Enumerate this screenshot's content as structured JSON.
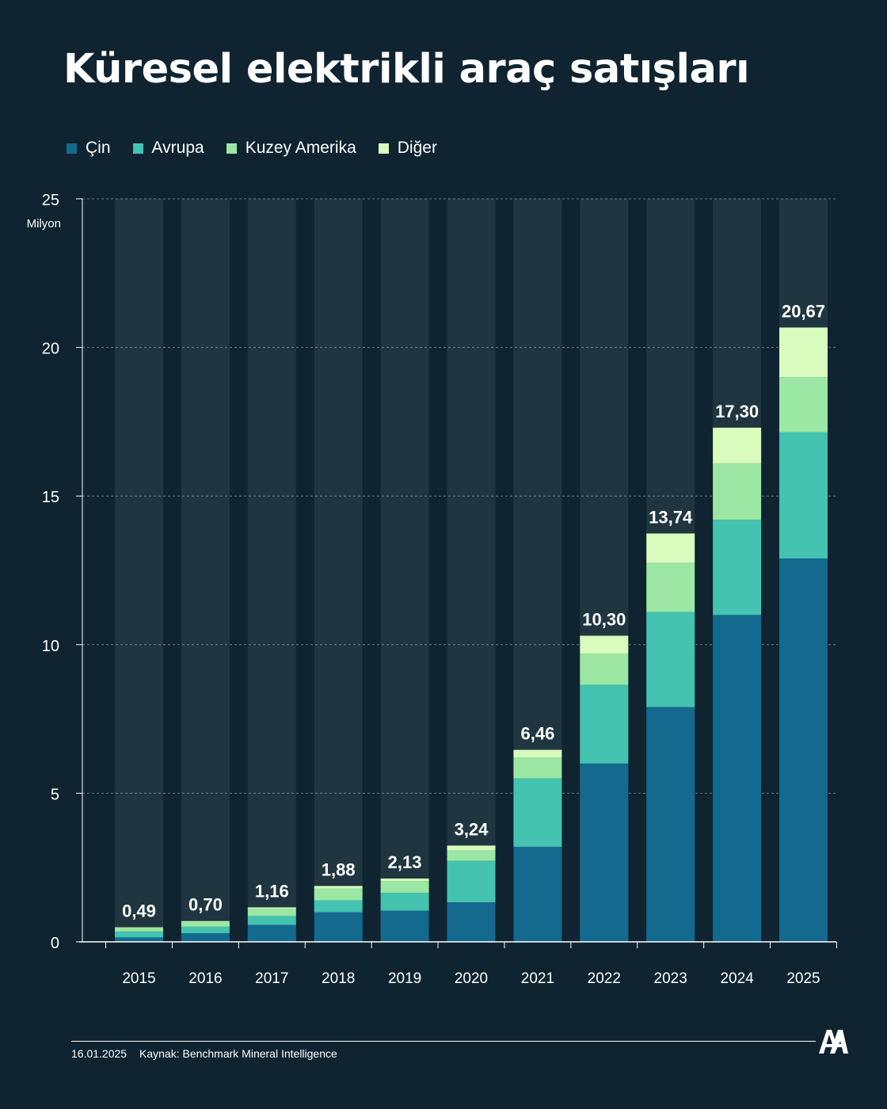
{
  "chart_data": {
    "type": "bar",
    "stacked": true,
    "title": "Küresel elektrikli araç satışları",
    "ylabel": "Milyon",
    "ylim": [
      0,
      25
    ],
    "yticks": [
      "0",
      "5",
      "10",
      "15",
      "20",
      "25"
    ],
    "categories": [
      "2015",
      "2016",
      "2017",
      "2018",
      "2019",
      "2020",
      "2021",
      "2022",
      "2023",
      "2024",
      "2025"
    ],
    "totals": [
      "0,49",
      "0,70",
      "1,16",
      "1,88",
      "2,13",
      "3,24",
      "6,46",
      "10,30",
      "13,74",
      "17,30",
      "20,67"
    ],
    "series": [
      {
        "name": "Çin",
        "color": "#14698f",
        "values": [
          0.15,
          0.29,
          0.57,
          1.0,
          1.05,
          1.33,
          3.2,
          6.0,
          7.9,
          11.0,
          12.9
        ]
      },
      {
        "name": "Avrupa",
        "color": "#43c3b0",
        "values": [
          0.2,
          0.22,
          0.3,
          0.4,
          0.6,
          1.4,
          2.3,
          2.65,
          3.2,
          3.2,
          4.25
        ]
      },
      {
        "name": "Kuzey Amerika",
        "color": "#9be7a3",
        "values": [
          0.12,
          0.17,
          0.24,
          0.4,
          0.4,
          0.35,
          0.7,
          1.05,
          1.65,
          1.9,
          1.85
        ]
      },
      {
        "name": "Diğer",
        "color": "#d9fbbd",
        "values": [
          0.02,
          0.02,
          0.05,
          0.08,
          0.08,
          0.16,
          0.26,
          0.6,
          0.99,
          1.2,
          1.67
        ]
      }
    ]
  },
  "footer": {
    "date": "16.01.2025",
    "source": "Kaynak: Benchmark Mineral Intelligence"
  },
  "colors": {
    "background": "#0f2430",
    "column_background": "#1f3640",
    "axis": "#ffffff"
  },
  "logo": {
    "icon": "aa-logo-icon",
    "text": "AA"
  }
}
